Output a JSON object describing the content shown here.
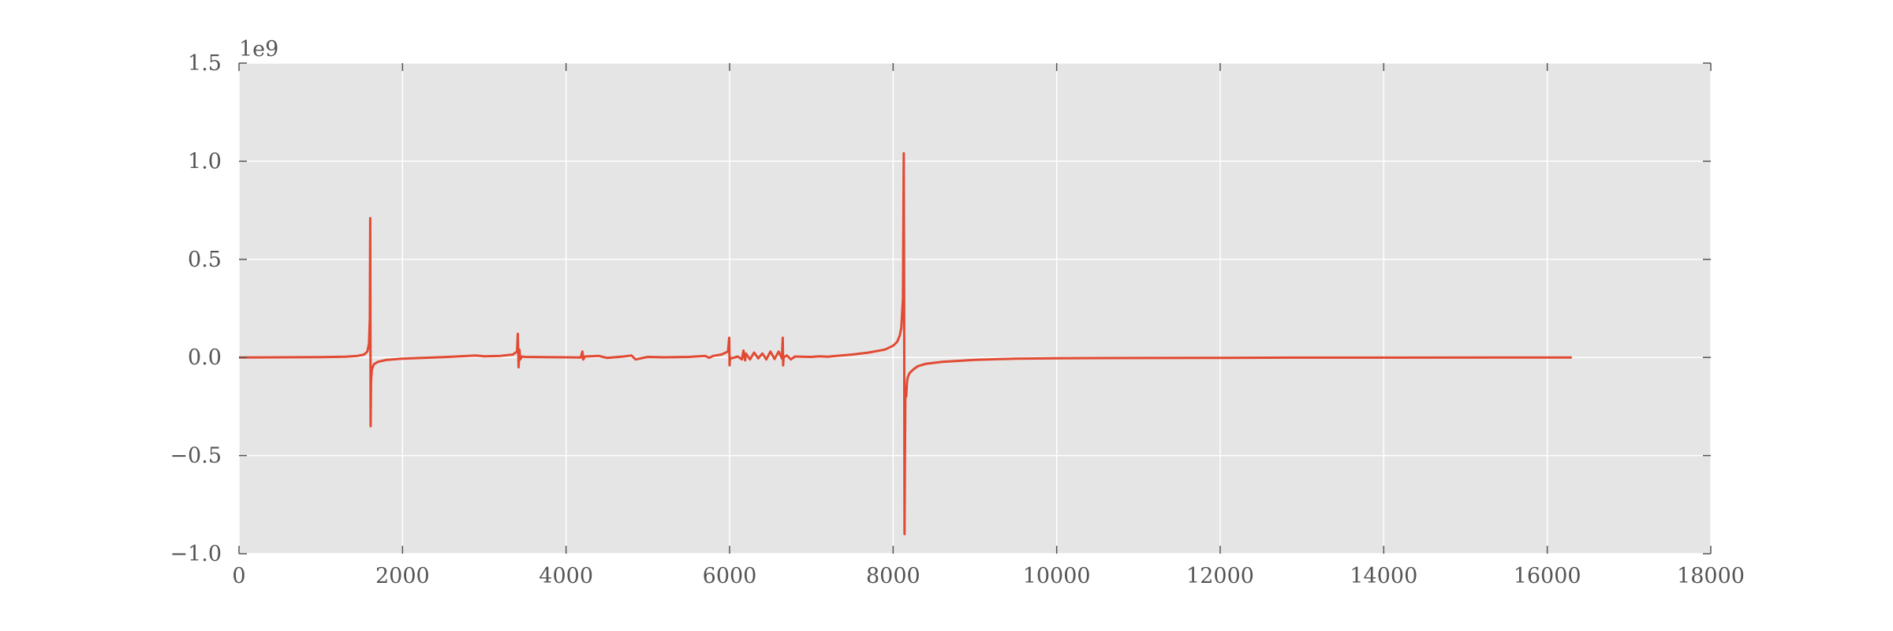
{
  "chart_data": {
    "type": "line",
    "title": "",
    "xlabel": "",
    "ylabel": "",
    "y_offset_label": "1e9",
    "xlim": [
      0,
      18000
    ],
    "ylim": [
      -1.0,
      1.5
    ],
    "x_ticks": [
      0,
      2000,
      4000,
      6000,
      8000,
      10000,
      12000,
      14000,
      16000,
      18000
    ],
    "x_tick_labels": [
      "0",
      "2000",
      "4000",
      "6000",
      "8000",
      "10000",
      "12000",
      "14000",
      "16000",
      "18000"
    ],
    "y_ticks": [
      -1.0,
      -0.5,
      0.0,
      0.5,
      1.0,
      1.5
    ],
    "y_tick_labels": [
      "−1.0",
      "−0.5",
      "0.0",
      "0.5",
      "1.0",
      "1.5"
    ],
    "grid": true,
    "colors": {
      "plot_background": "#e5e5e5",
      "grid": "#ffffff",
      "line": "#e24a33",
      "tick_label": "#555555"
    },
    "series": [
      {
        "color": "#e24a33",
        "x": [
          0,
          500,
          1000,
          1300,
          1450,
          1530,
          1570,
          1590,
          1600,
          1605,
          1610,
          1615,
          1625,
          1650,
          1700,
          1800,
          2000,
          2500,
          2800,
          2900,
          3000,
          3200,
          3350,
          3400,
          3410,
          3420,
          3430,
          3440,
          3460,
          3500,
          3700,
          4000,
          4180,
          4200,
          4210,
          4230,
          4400,
          4500,
          4700,
          4800,
          4850,
          5000,
          5200,
          5500,
          5700,
          5750,
          5800,
          5900,
          5980,
          5995,
          6000,
          6005,
          6020,
          6100,
          6150,
          6170,
          6190,
          6200,
          6250,
          6300,
          6350,
          6400,
          6450,
          6500,
          6550,
          6600,
          6640,
          6650,
          6655,
          6660,
          6700,
          6750,
          6800,
          7000,
          7100,
          7200,
          7300,
          7500,
          7700,
          7900,
          8000,
          8050,
          8080,
          8100,
          8120,
          8130,
          8135,
          8140,
          8145,
          8150,
          8160,
          8170,
          8180,
          8200,
          8250,
          8300,
          8400,
          8600,
          9000,
          9500,
          10000,
          12000,
          12900,
          14000,
          16000,
          16300
        ],
        "y": [
          0.0,
          0.001,
          0.002,
          0.004,
          0.008,
          0.015,
          0.03,
          0.07,
          0.2,
          0.71,
          -0.35,
          -0.12,
          -0.06,
          -0.035,
          -0.022,
          -0.013,
          -0.006,
          0.002,
          0.008,
          0.01,
          0.006,
          0.008,
          0.015,
          0.03,
          0.12,
          -0.05,
          0.04,
          -0.01,
          0.005,
          0.003,
          0.002,
          0.001,
          0.0,
          0.03,
          -0.01,
          0.005,
          0.008,
          -0.002,
          0.005,
          0.01,
          -0.01,
          0.003,
          0.001,
          0.003,
          0.008,
          -0.002,
          0.008,
          0.015,
          0.03,
          0.1,
          -0.04,
          0.0,
          -0.005,
          0.005,
          -0.01,
          0.035,
          -0.015,
          0.02,
          -0.01,
          0.025,
          -0.005,
          0.02,
          -0.01,
          0.03,
          -0.008,
          0.03,
          -0.005,
          0.1,
          -0.04,
          0.0,
          0.01,
          -0.01,
          0.005,
          0.003,
          0.006,
          0.004,
          0.008,
          0.015,
          0.025,
          0.04,
          0.06,
          0.08,
          0.11,
          0.15,
          0.3,
          1.04,
          0.35,
          -0.9,
          -0.45,
          -0.15,
          -0.2,
          -0.12,
          -0.1,
          -0.08,
          -0.06,
          -0.045,
          -0.032,
          -0.022,
          -0.012,
          -0.006,
          -0.004,
          -0.002,
          -0.001,
          -0.001,
          0.0,
          0.0
        ]
      }
    ]
  }
}
